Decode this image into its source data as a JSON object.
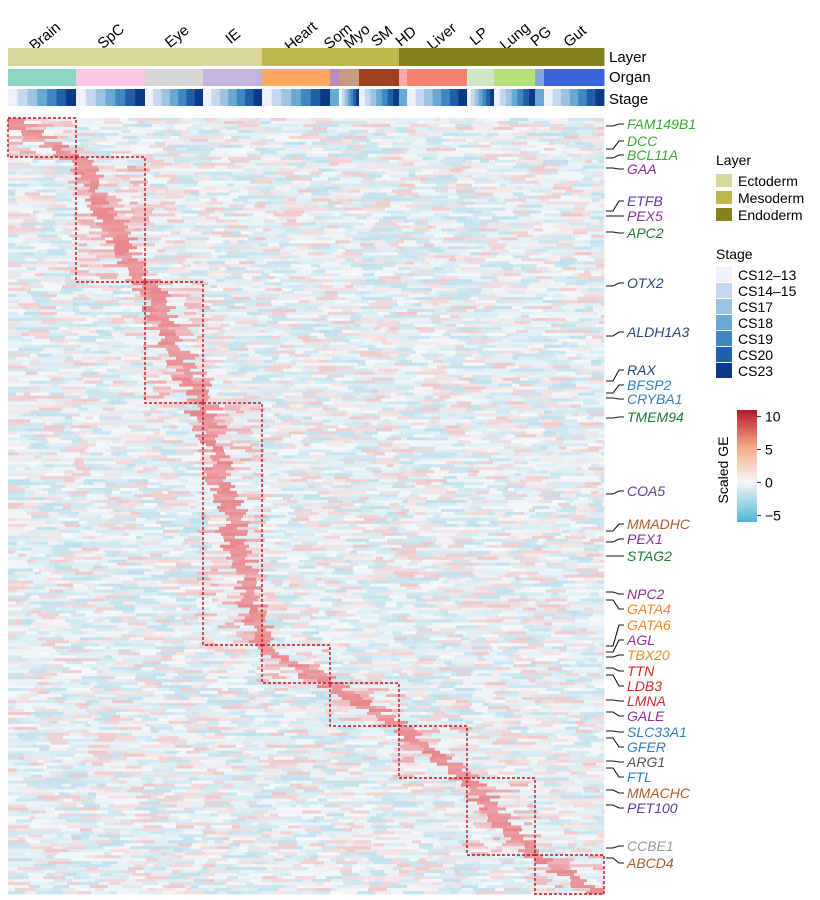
{
  "chart_data": {
    "type": "heatmap",
    "title": "",
    "colorbar": {
      "title": "Scaled GE",
      "ticks": [
        10,
        5,
        0,
        -5
      ],
      "range": [
        -6,
        11
      ],
      "colors": {
        "high": "#B2182B",
        "mid": "#F7F7F7",
        "low": "#4FB7D6"
      }
    },
    "annotation_rows": [
      "Layer",
      "Organ",
      "Stage"
    ],
    "organs": [
      {
        "label": "Brain",
        "layer": "Ectoderm",
        "color": "#8ED6C4"
      },
      {
        "label": "SpC",
        "layer": "Ectoderm",
        "color": "#FCC6E4"
      },
      {
        "label": "Eye",
        "layer": "Ectoderm",
        "color": "#D6D6D6"
      },
      {
        "label": "IE",
        "layer": "Ectoderm",
        "color": "#C3B4DC"
      },
      {
        "label": "Heart",
        "layer": "Mesoderm",
        "color": "#FCAA60"
      },
      {
        "label": "Som",
        "layer": "Mesoderm",
        "color": "#B88CC0"
      },
      {
        "label": "Myo",
        "layer": "Mesoderm",
        "color": "#C79A82"
      },
      {
        "label": "SM",
        "layer": "Mesoderm",
        "color": "#A0401E"
      },
      {
        "label": "HD",
        "layer": "Endoderm",
        "color": "#FCA8A8"
      },
      {
        "label": "Liver",
        "layer": "Endoderm",
        "color": "#F88072"
      },
      {
        "label": "LP",
        "layer": "Endoderm",
        "color": "#CCE8C4"
      },
      {
        "label": "Lung",
        "layer": "Endoderm",
        "color": "#B4DE78"
      },
      {
        "label": "PG",
        "layer": "Endoderm",
        "color": "#82A6E0"
      },
      {
        "label": "Gut",
        "layer": "Endoderm",
        "color": "#3E64DC"
      }
    ],
    "layer_legend": {
      "title": "Layer",
      "entries": [
        {
          "label": "Ectoderm",
          "color": "#D8D69A"
        },
        {
          "label": "Mesoderm",
          "color": "#BABA4E"
        },
        {
          "label": "Endoderm",
          "color": "#83821C"
        }
      ]
    },
    "stage_legend": {
      "title": "Stage",
      "entries": [
        {
          "label": "CS12–13",
          "color": "#EEF1FA"
        },
        {
          "label": "CS14–15",
          "color": "#C6D8EE"
        },
        {
          "label": "CS17",
          "color": "#9CC4E2"
        },
        {
          "label": "CS18",
          "color": "#6AA8D4"
        },
        {
          "label": "CS19",
          "color": "#3F88C2"
        },
        {
          "label": "CS20",
          "color": "#2060A8"
        },
        {
          "label": "CS23",
          "color": "#0A3A86"
        }
      ]
    },
    "genes": [
      {
        "name": "FAM149B1",
        "color": "#3AA935"
      },
      {
        "name": "DCC",
        "color": "#3AA935"
      },
      {
        "name": "BCL11A",
        "color": "#3AA935"
      },
      {
        "name": "GAA",
        "color": "#8E2E96"
      },
      {
        "name": "ETFB",
        "color": "#5E3C99"
      },
      {
        "name": "PEX5",
        "color": "#8E2E96"
      },
      {
        "name": "APC2",
        "color": "#1F7A36"
      },
      {
        "name": "OTX2",
        "color": "#27467E"
      },
      {
        "name": "ALDH1A3",
        "color": "#27467E"
      },
      {
        "name": "RAX",
        "color": "#27467E"
      },
      {
        "name": "BFSP2",
        "color": "#2F7FC1"
      },
      {
        "name": "CRYBA1",
        "color": "#2F7FC1"
      },
      {
        "name": "TMEM94",
        "color": "#1F7A36"
      },
      {
        "name": "COA5",
        "color": "#5E3C99"
      },
      {
        "name": "MMADHC",
        "color": "#B25A2C"
      },
      {
        "name": "PEX1",
        "color": "#8E2E96"
      },
      {
        "name": "STAG2",
        "color": "#1F7A36"
      },
      {
        "name": "NPC2",
        "color": "#8E2E96"
      },
      {
        "name": "GATA4",
        "color": "#F08A24"
      },
      {
        "name": "GATA6",
        "color": "#F08A24"
      },
      {
        "name": "AGL",
        "color": "#8E2E96"
      },
      {
        "name": "TBX20",
        "color": "#F08A24"
      },
      {
        "name": "TTN",
        "color": "#D62728"
      },
      {
        "name": "LDB3",
        "color": "#D62728"
      },
      {
        "name": "LMNA",
        "color": "#D62728"
      },
      {
        "name": "GALE",
        "color": "#8E2E96"
      },
      {
        "name": "SLC33A1",
        "color": "#2F7FC1"
      },
      {
        "name": "GFER",
        "color": "#2F7FC1"
      },
      {
        "name": "ARG1",
        "color": "#555555"
      },
      {
        "name": "FTL",
        "color": "#2F7FC1"
      },
      {
        "name": "MMACHC",
        "color": "#B25A2C"
      },
      {
        "name": "PET100",
        "color": "#5E3C99"
      },
      {
        "name": "CCBE1",
        "color": "#999999"
      },
      {
        "name": "ABCD4",
        "color": "#B25A2C"
      }
    ]
  }
}
